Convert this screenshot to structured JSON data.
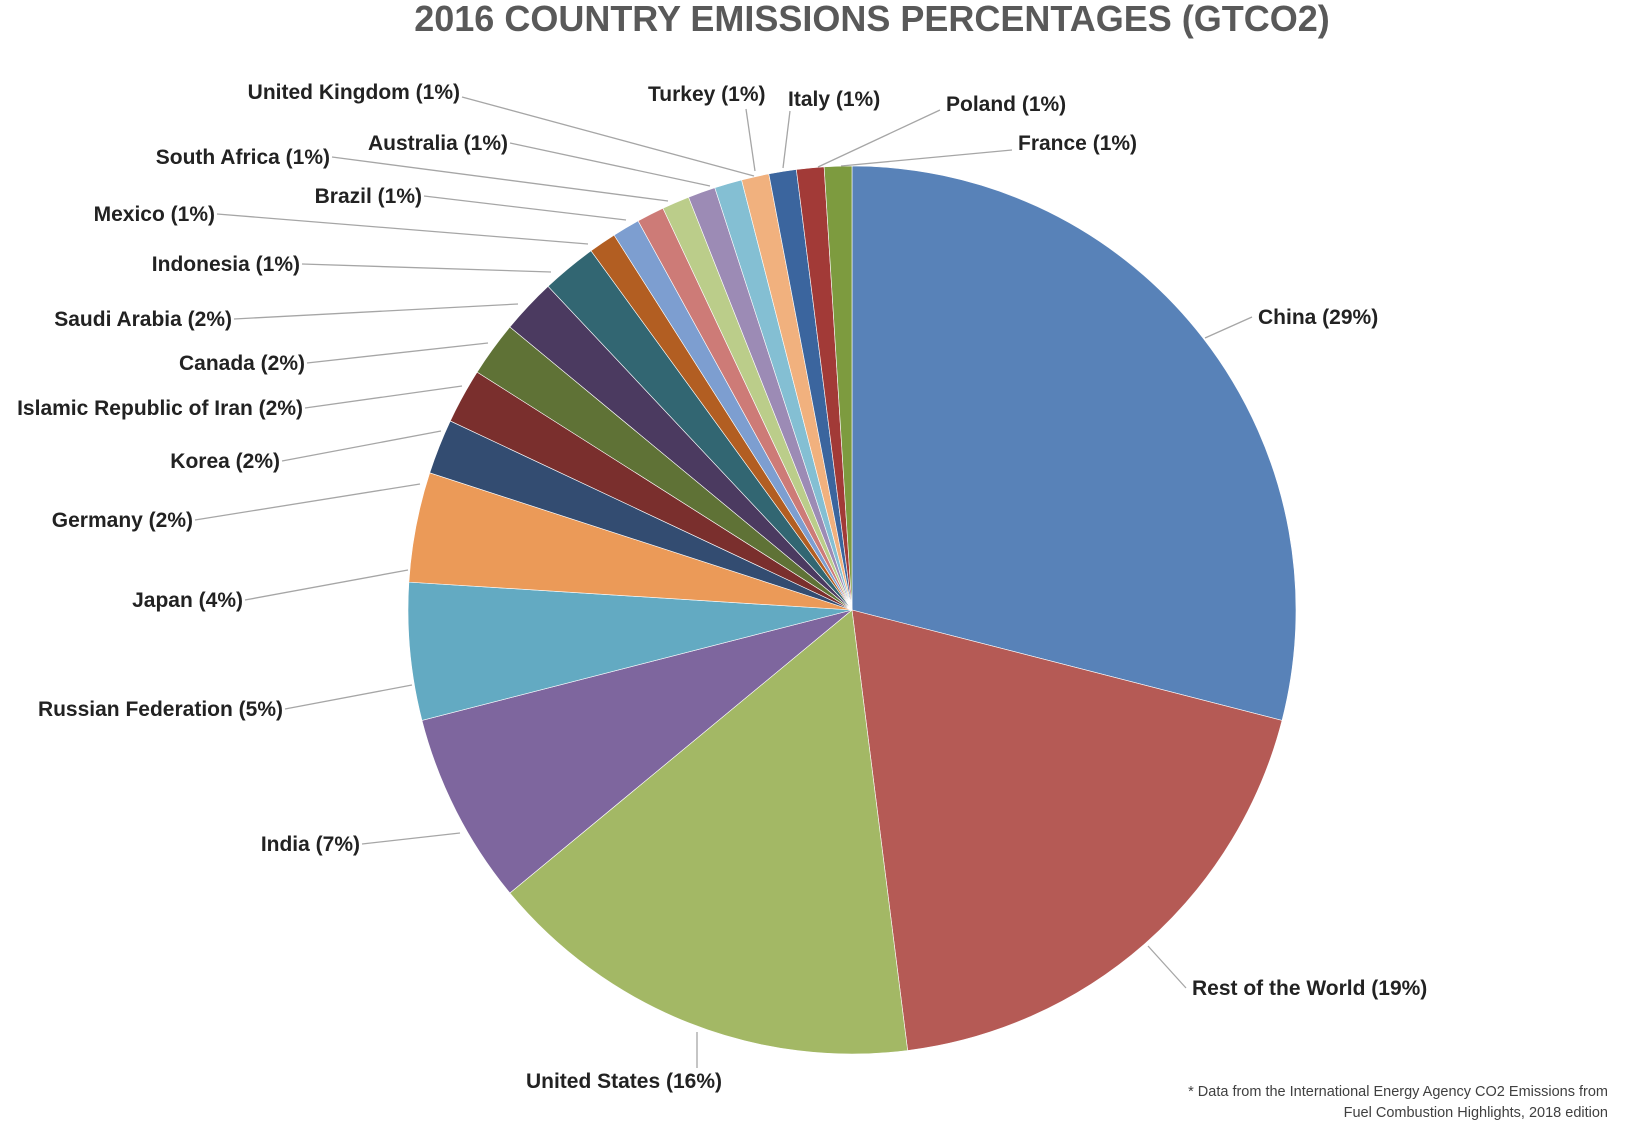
{
  "chart_data": {
    "type": "pie",
    "title": "2016 COUNTRY EMISSIONS PERCENTAGES (GTCO2)",
    "start_angle": "12 o'clock",
    "direction": "clockwise",
    "legend": "none (data labels with leader lines)",
    "slices": [
      {
        "label": "China (29%)",
        "category": "China",
        "value": 29,
        "color": "#5882B8"
      },
      {
        "label": "Rest of the World (19%)",
        "category": "Rest of the World",
        "value": 19,
        "color": "#B55A55"
      },
      {
        "label": "United States (16%)",
        "category": "United States",
        "value": 16,
        "color": "#A3B865"
      },
      {
        "label": "India (7%)",
        "category": "India",
        "value": 7,
        "color": "#7E669E"
      },
      {
        "label": "Russian Federation (5%)",
        "category": "Russian Federation",
        "value": 5,
        "color": "#63AAC2"
      },
      {
        "label": "Japan (4%)",
        "category": "Japan",
        "value": 4,
        "color": "#EB9A58"
      },
      {
        "label": "Germany (2%)",
        "category": "Germany",
        "value": 2,
        "color": "#334C71"
      },
      {
        "label": "Korea (2%)",
        "category": "Korea",
        "value": 2,
        "color": "#7A2F2D"
      },
      {
        "label": "Islamic Republic of Iran (2%)",
        "category": "Islamic Republic of Iran",
        "value": 2,
        "color": "#5F7236"
      },
      {
        "label": "Canada (2%)",
        "category": "Canada",
        "value": 2,
        "color": "#4B3A60"
      },
      {
        "label": "Saudi Arabia (2%)",
        "category": "Saudi Arabia",
        "value": 2,
        "color": "#326672"
      },
      {
        "label": "Indonesia (1%)",
        "category": "Indonesia",
        "value": 1,
        "color": "#B25E22"
      },
      {
        "label": "Mexico (1%)",
        "category": "Mexico",
        "value": 1,
        "color": "#7D9ED0"
      },
      {
        "label": "Brazil (1%)",
        "category": "Brazil",
        "value": 1,
        "color": "#CD7B77"
      },
      {
        "label": "South Africa (1%)",
        "category": "South Africa",
        "value": 1,
        "color": "#BBCD8A"
      },
      {
        "label": "Australia (1%)",
        "category": "Australia",
        "value": 1,
        "color": "#9C8BB5"
      },
      {
        "label": "United Kingdom (1%)",
        "category": "United Kingdom",
        "value": 1,
        "color": "#84BFD3"
      },
      {
        "label": "Turkey (1%)",
        "category": "Turkey",
        "value": 1,
        "color": "#F1B17E"
      },
      {
        "label": "Italy (1%)",
        "category": "Italy",
        "value": 1,
        "color": "#3B659E"
      },
      {
        "label": "Poland (1%)",
        "category": "Poland",
        "value": 1,
        "color": "#A23A37"
      },
      {
        "label": "France (1%)",
        "category": "France",
        "value": 1,
        "color": "#7D9B3F"
      }
    ]
  },
  "source_note": {
    "line1": "* Data from the International Energy Agency CO2 Emissions from",
    "line2": "Fuel Combustion Highlights, 2018 edition"
  }
}
